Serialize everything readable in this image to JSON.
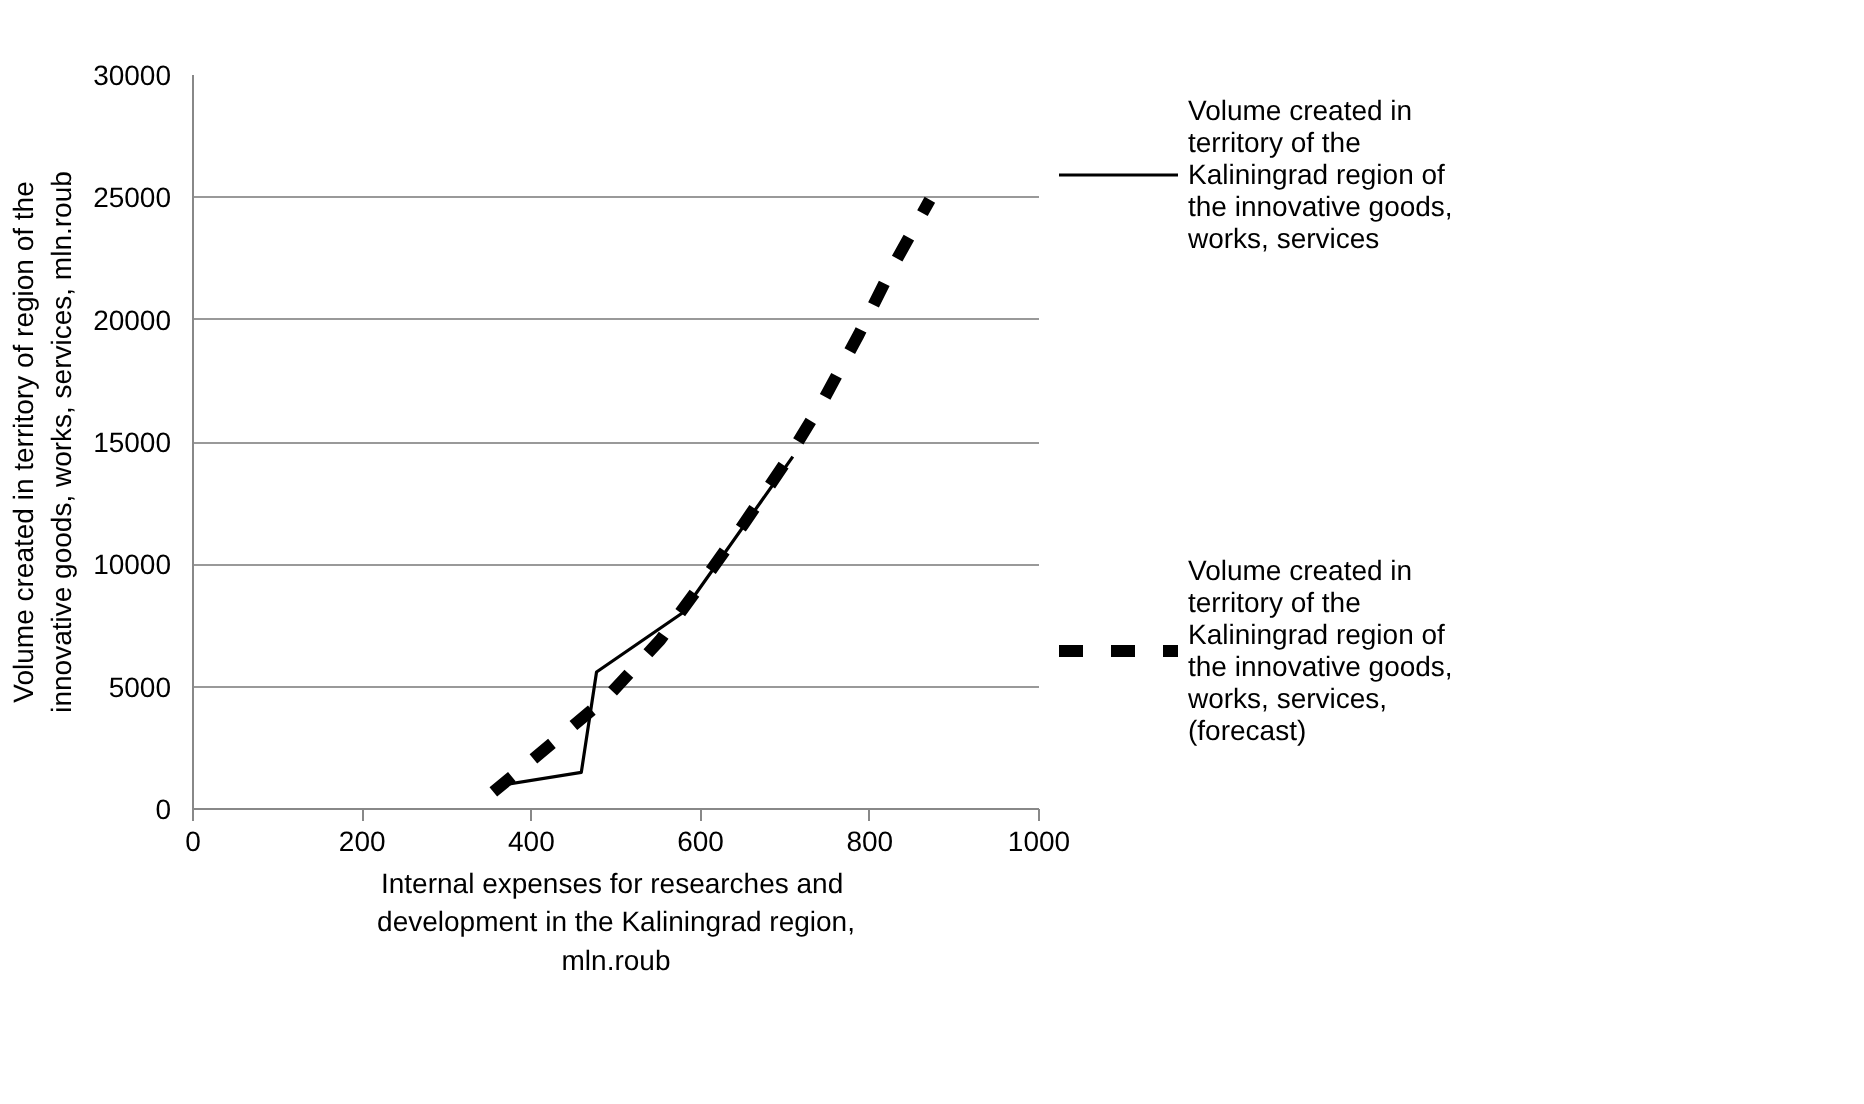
{
  "chart_data": {
    "type": "line",
    "xlabel": "Internal  expenses for researches and development in the Kaliningrad region, mln.roub",
    "ylabel": "Volume created in territory of region of the innovative goods, works, services, mln.roub",
    "series": [
      {
        "name": "Volume created in territory of the Kaliningrad region of the innovative goods, works, services",
        "color": "#000000",
        "line_style": "solid",
        "x": [
          370,
          459,
          477,
          578,
          709
        ],
        "values": [
          1000,
          1500,
          5600,
          8000,
          14400
        ]
      },
      {
        "name": "Volume created in territory of the Kaliningrad region of the innovative goods, works, services, (forecast)",
        "color": "#000000",
        "line_style": "dashed",
        "x": [
          355,
          425,
          489,
          552,
          603,
          650,
          701,
          745,
          787,
          826,
          871
        ],
        "values": [
          700,
          2700,
          4550,
          6900,
          9300,
          11600,
          14200,
          16700,
          19400,
          22100,
          24900
        ]
      }
    ],
    "xlim": [
      0,
      1000
    ],
    "xticks": [
      0,
      200,
      400,
      600,
      800,
      1000
    ],
    "ylim": [
      0,
      30000
    ],
    "yticks": [
      0,
      5000,
      10000,
      15000,
      20000,
      25000,
      30000
    ],
    "grid": "y",
    "legend": "right",
    "marker": "none"
  }
}
